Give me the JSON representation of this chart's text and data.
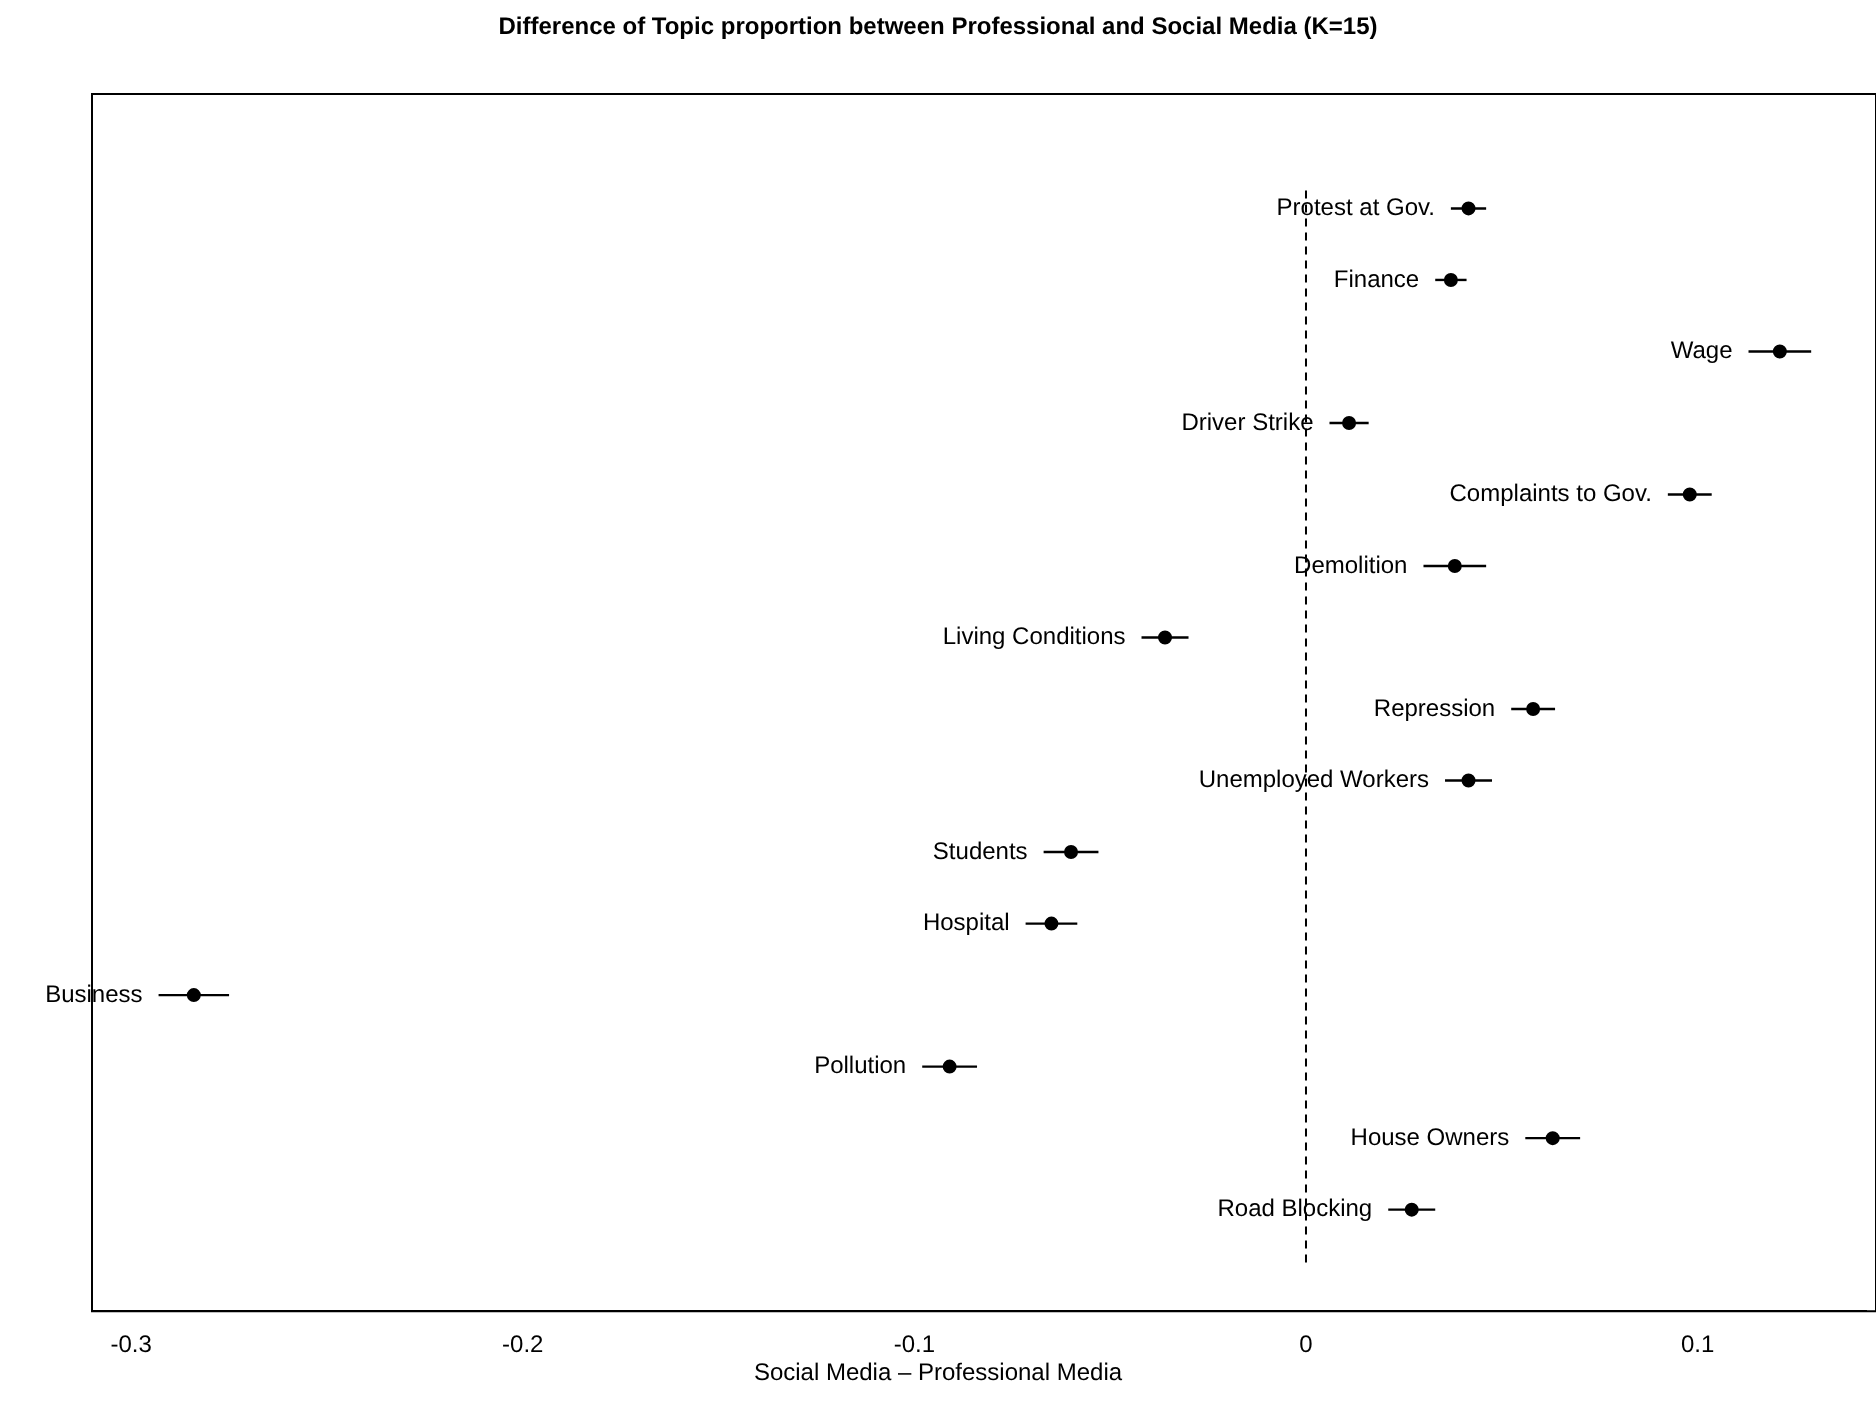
{
  "chart_data": {
    "type": "scatter",
    "orientation": "horizontal",
    "title": "Difference of Topic proportion between Professional and Social Media (K=15)",
    "xlabel": "Social Media – Professional Media",
    "categories": [
      "Protest at Gov.",
      "Finance",
      "Wage",
      "Driver Strike",
      "Complaints to Gov.",
      "Demolition",
      "Living Conditions",
      "Repression",
      "Unemployed Workers",
      "Students",
      "Hospital",
      "Business",
      "Pollution",
      "House Owners",
      "Road Blocking"
    ],
    "values": [
      0.0415,
      0.037,
      0.121,
      0.011,
      0.098,
      0.038,
      -0.036,
      0.058,
      0.0415,
      -0.06,
      -0.065,
      -0.284,
      -0.091,
      0.063,
      0.027
    ],
    "errors": [
      0.0045,
      0.004,
      0.008,
      0.005,
      0.0056,
      0.008,
      0.006,
      0.0056,
      0.006,
      0.007,
      0.0066,
      0.009,
      0.007,
      0.007,
      0.006
    ],
    "color": "#000000",
    "marker": "circle",
    "xlim": [
      -0.31,
      0.143
    ],
    "xticks": [
      -0.3,
      -0.2,
      -0.1,
      0,
      0.1
    ],
    "ref_lines": [
      {
        "axis": "x",
        "value": 0,
        "line_style": "dashed",
        "color": "#000000"
      }
    ],
    "grid": false,
    "legend": false
  }
}
